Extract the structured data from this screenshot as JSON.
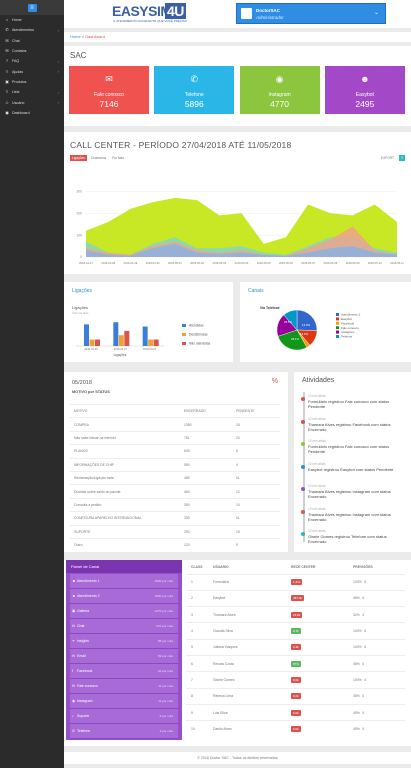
{
  "sidebar": {
    "items": [
      {
        "icon": "home-icon",
        "glyph": "⌂",
        "label": "Home",
        "caret": false
      },
      {
        "icon": "phone-icon",
        "glyph": "✆",
        "label": "Atendimentos",
        "caret": true
      },
      {
        "icon": "chat-icon",
        "glyph": "✉",
        "label": "Chat",
        "caret": false
      },
      {
        "icon": "mail-icon",
        "glyph": "✉",
        "label": "Contatos",
        "caret": false
      },
      {
        "icon": "faq-icon",
        "glyph": "?",
        "label": "FAQ",
        "caret": true
      },
      {
        "icon": "list-icon",
        "glyph": "≡",
        "label": "Ajudas",
        "caret": true
      },
      {
        "icon": "product-icon",
        "glyph": "▣",
        "label": "Produtos",
        "caret": false
      },
      {
        "icon": "list-icon",
        "glyph": "≡",
        "label": "Lists",
        "caret": true
      },
      {
        "icon": "user-icon",
        "glyph": "☺",
        "label": "Usuário",
        "caret": true
      },
      {
        "icon": "dashboard-icon",
        "glyph": "◼",
        "label": "Dashboard",
        "caret": false
      }
    ]
  },
  "header": {
    "logo_part1": "EASYSIM",
    "logo_part2": "4U",
    "logo_tagline": "O ATENDIMENTO EXCELENTE QUE VOCÊ PRECISA",
    "user_name": "DoctorSAC",
    "user_role": "Administrador"
  },
  "breadcrumb": {
    "home": "Home",
    "sep": " > ",
    "current": "Dashboard"
  },
  "sac": {
    "title": "SAC",
    "cards": [
      {
        "label": "Fale conosco",
        "value": "7146",
        "color": "#f0524f",
        "icon": "envelope-icon",
        "glyph": "✉"
      },
      {
        "label": "Telefone",
        "value": "5896",
        "color": "#2ab7e8",
        "icon": "phone-icon",
        "glyph": "✆"
      },
      {
        "label": "Instagram",
        "value": "4770",
        "color": "#8cc63f",
        "icon": "instagram-icon",
        "glyph": "◉"
      },
      {
        "label": "Easybot",
        "value": "2495",
        "color": "#a348c6",
        "icon": "user-icon",
        "glyph": "☻"
      }
    ]
  },
  "callcenter": {
    "title": "CALL CENTER - PERÍODO 27/04/2018 ATÉ 11/05/2018",
    "tabs": [
      "Ligações",
      "Chamados",
      "Por sala"
    ],
    "export_label": "EXPORT",
    "export_icon": "≡",
    "y_ticks": [
      "300",
      "200",
      "100",
      "0"
    ],
    "x_ticks": [
      "2018-04-27",
      "2018-04-28",
      "2018-04-29",
      "2018-04-30",
      "2018-05-01",
      "2018-05-02",
      "2018-05-03",
      "2018-05-04",
      "2018-05-05",
      "2018-05-06",
      "2018-05-07",
      "2018-05-08",
      "2018-05-09",
      "2018-05-10",
      "2018-05-11"
    ]
  },
  "chart_data": [
    {
      "type": "area",
      "x": [
        "2018-04-27",
        "2018-04-28",
        "2018-04-29",
        "2018-04-30",
        "2018-05-01",
        "2018-05-02",
        "2018-05-03",
        "2018-05-04",
        "2018-05-05",
        "2018-05-06",
        "2018-05-07",
        "2018-05-08",
        "2018-05-09",
        "2018-05-10",
        "2018-05-11"
      ],
      "ylim": [
        0,
        320
      ],
      "series": [
        {
          "color": "#c5e619",
          "values": [
            120,
            160,
            220,
            250,
            270,
            260,
            190,
            200,
            60,
            90,
            240,
            200,
            190,
            240,
            160
          ]
        },
        {
          "color": "#7fd6c9",
          "values": [
            70,
            20,
            10,
            60,
            90,
            40,
            40,
            50,
            20,
            10,
            50,
            90,
            90,
            40,
            20
          ]
        },
        {
          "color": "#f0a090",
          "values": [
            40,
            20,
            10,
            50,
            70,
            30,
            20,
            30,
            10,
            5,
            40,
            80,
            140,
            30,
            10
          ]
        },
        {
          "color": "#86b3e6",
          "values": [
            30,
            10,
            5,
            40,
            60,
            20,
            15,
            20,
            10,
            5,
            20,
            40,
            50,
            20,
            10
          ]
        }
      ]
    },
    {
      "type": "bar",
      "title": "Ligações",
      "subtitle": "Últimos dias",
      "xlabel": "Ligações",
      "categories": [
        "2018-04-20",
        "2018-04-27",
        "2018-05-04"
      ],
      "ylim": [
        0,
        25
      ],
      "series": [
        {
          "name": "Atendidas",
          "color": "#3b7dd8",
          "values": [
            20,
            22,
            18
          ]
        },
        {
          "name": "Desistências",
          "color": "#f0a030",
          "values": [
            6,
            10,
            6
          ]
        },
        {
          "name": "Não atendidas",
          "color": "#d9534f",
          "values": [
            6,
            14,
            6
          ]
        }
      ]
    },
    {
      "type": "pie",
      "title": "Via Telefone",
      "labels": [
        "Atendimento 2",
        "Easybot",
        "Facebook",
        "Fale conosco",
        "Instagram",
        "Telefone"
      ],
      "colors": [
        "#3366cc",
        "#dc3912",
        "#ff9900",
        "#109618",
        "#990099",
        "#0099c6"
      ],
      "values": [
        25.5,
        13.3,
        3.0,
        28.1,
        18.6,
        11.5
      ],
      "label_values": [
        "25.5%",
        "13.3%",
        "28.1%",
        "18.6%"
      ]
    }
  ],
  "ligacoes": {
    "title": "Ligações"
  },
  "canais": {
    "title": "Canais"
  },
  "motivos": {
    "title": "05/2018",
    "subtitle": "MOTIVO por STATUS",
    "headers": [
      "MOTIVO",
      "ENCERRADO",
      "PENDENTE"
    ],
    "rows": [
      [
        "COMPRA",
        "1350",
        "15"
      ],
      [
        "Não sabe baixar na internet",
        "751",
        "20"
      ],
      [
        "PLANOS",
        "630",
        "6"
      ],
      [
        "INFORMAÇÕES DE CHIP",
        "550",
        "4"
      ],
      [
        "Reclamação/Ligação mute",
        "480",
        "11"
      ],
      [
        "Dúvidas sobre saldo do pacote",
        "460",
        "12"
      ],
      [
        "Consulta a pedido",
        "350",
        "10"
      ],
      [
        "CONFIGURA APARELHO INTERNACIONAL",
        "330",
        "11"
      ],
      [
        "SUPORTE",
        "290",
        "15"
      ],
      [
        "Outro",
        "120",
        "9"
      ]
    ]
  },
  "atividades": {
    "title": "Atividades",
    "items": [
      {
        "time": "10 min atrás",
        "text": "Formulário registrou Fale conosco com status Pendente",
        "color": "#d9534f"
      },
      {
        "time": "10 min atrás",
        "text": "Thamara Alves registrou Facebook com status Encerrado",
        "color": "#d9534f"
      },
      {
        "time": "10 min atrás",
        "text": "Formulário registrou Fale conosco com status Pendente",
        "color": "#8cc63f"
      },
      {
        "time": "10 min atrás",
        "text": "Easybot registrou Easybot com status Pendente",
        "color": "#2f8de4"
      },
      {
        "time": "10 min atrás",
        "text": "Thamara Alves registrou Instagram com status Encerrado",
        "color": "#9650c8"
      },
      {
        "time": "10 min atrás",
        "text": "Thamara Alves registrou Instagram com status Encerrado",
        "color": "#d9534f"
      },
      {
        "time": "10 min atrás",
        "text": "Gisele Gomes registrou Telefone com status Encerrado",
        "color": "#2ab7c6"
      }
    ]
  },
  "painel": {
    "title": "Painel de Canal",
    "items": [
      {
        "icon": "user-icon",
        "glyph": "☻",
        "label": "Atendimento 1",
        "value": "2590 por mês"
      },
      {
        "icon": "user-icon",
        "glyph": "☻",
        "label": "Atendimento 2",
        "value": "1860 por mês"
      },
      {
        "icon": "gallery-icon",
        "glyph": "▣",
        "label": "Galleria",
        "value": "1270 por mês"
      },
      {
        "icon": "chat-icon",
        "glyph": "✉",
        "label": "Chat",
        "value": "670 por mês"
      },
      {
        "icon": "link-icon",
        "glyph": "⚭",
        "label": "Insights",
        "value": "85 por mês"
      },
      {
        "icon": "mail-icon",
        "glyph": "✉",
        "label": "Email",
        "value": "59 por mês"
      },
      {
        "icon": "facebook-icon",
        "glyph": "f",
        "label": "Facebook",
        "value": "20 por mês"
      },
      {
        "icon": "mail-icon",
        "glyph": "✉",
        "label": "Fale conosco",
        "value": "11 por mês"
      },
      {
        "icon": "instagram-icon",
        "glyph": "◉",
        "label": "Instagram",
        "value": "11 por mês"
      },
      {
        "icon": "support-icon",
        "glyph": "♪",
        "label": "Suporte",
        "value": "5 por mês"
      },
      {
        "icon": "phone-icon",
        "glyph": "✆",
        "label": "Telefone",
        "value": "3 por mês"
      }
    ]
  },
  "ranking": {
    "headers": [
      "CLASS",
      "USUARIO",
      "RECE CENTER",
      "PREVISÕES"
    ],
    "rows": [
      {
        "class": "1",
        "user": "Formulário",
        "badge": "1.21k",
        "badge_color": "#d9534f",
        "prev": "100%",
        "arrow": "⇕"
      },
      {
        "class": "2",
        "user": "Easybot",
        "badge": "487.4k",
        "badge_color": "#d9534f",
        "prev": "45%",
        "arrow": "⇕"
      },
      {
        "class": "3",
        "user": "Thamara Alves",
        "badge": "15.8k",
        "badge_color": "#d9534f",
        "prev": "32%",
        "arrow": "⇕"
      },
      {
        "class": "4",
        "user": "Claudia Silva",
        "badge": "9.7k",
        "badge_color": "#5cb85c",
        "prev": "100%",
        "arrow": "⇕"
      },
      {
        "class": "5",
        "user": "Juliana Vasques",
        "badge": "0.4k",
        "badge_color": "#d9534f",
        "prev": "100%",
        "arrow": "⇕"
      },
      {
        "class": "6",
        "user": "Renata Costa",
        "badge": "87%",
        "badge_color": "#5cb85c",
        "prev": "45%",
        "arrow": "⇕"
      },
      {
        "class": "7",
        "user": "Gisele Gomes",
        "badge": "0.0k",
        "badge_color": "#d9534f",
        "prev": "100%",
        "arrow": "⇕"
      },
      {
        "class": "8",
        "user": "Rebeca Lima",
        "badge": "0.0k",
        "badge_color": "#d9534f",
        "prev": "45%",
        "arrow": "⇕"
      },
      {
        "class": "9",
        "user": "Luis Silva",
        "badge": "0.0k",
        "badge_color": "#d9534f",
        "prev": "45%",
        "arrow": "⇕"
      },
      {
        "class": "10",
        "user": "Danilo Alves",
        "badge": "0.0k",
        "badge_color": "#d9534f",
        "prev": "45%",
        "arrow": "⇕"
      }
    ]
  },
  "footer": {
    "text": "© 2018 Doctor SAC - Todos os direitos reservados"
  }
}
